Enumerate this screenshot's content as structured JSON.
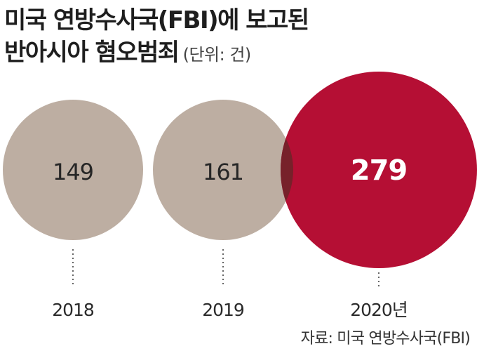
{
  "title": {
    "line1": "미국 연방수사국(FBI)에 보고된",
    "line2": "반아시아 혐오범죄",
    "unit": "(단위: 건)"
  },
  "source": "자료: 미국 연방수사국(FBI)",
  "colors": {
    "past": "#bdaea2",
    "current": "#b50f34",
    "overlap": "#77212a",
    "past_text": "#262626",
    "current_text": "#ffffff",
    "dash": "#666666"
  },
  "chart_data": {
    "type": "bubble",
    "title": "미국 연방수사국(FBI)에 보고된 반아시아 혐오범죄",
    "unit": "(단위: 건)",
    "categories": [
      "2018",
      "2019",
      "2020년"
    ],
    "values": [
      149,
      161,
      279
    ],
    "highlight_index": 2
  }
}
